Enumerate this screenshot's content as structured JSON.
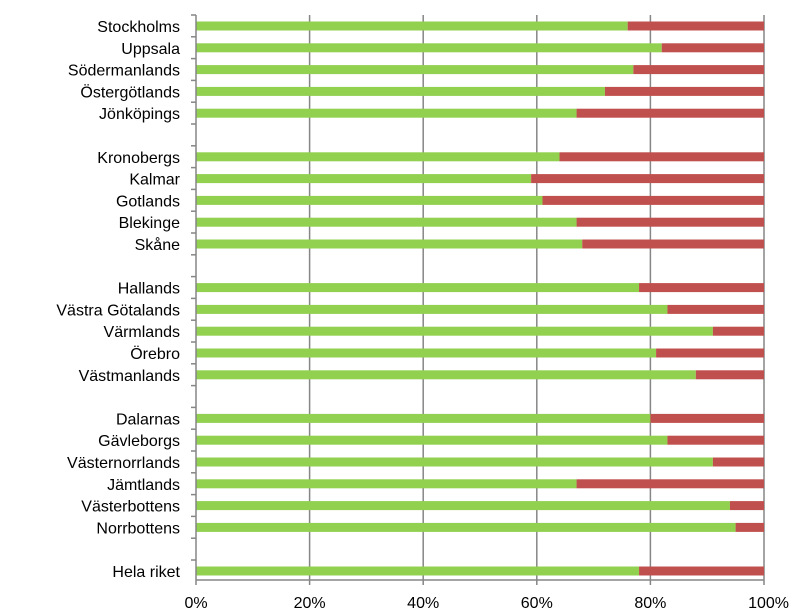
{
  "chart_data": {
    "type": "bar",
    "orientation": "horizontal",
    "stacked": true,
    "categories": [
      "Stockholms",
      "Uppsala",
      "Södermanlands",
      "Östergötlands",
      "Jönköpings",
      "",
      "Kronobergs",
      "Kalmar",
      "Gotlands",
      "Blekinge",
      "Skåne",
      "",
      "Hallands",
      "Västra Götalands",
      "Värmlands",
      "Örebro",
      "Västmanlands",
      "",
      "Dalarnas",
      "Gävleborgs",
      "Västernorrlands",
      "Jämtlands",
      "Västerbottens",
      "Norrbottens",
      "",
      "Hela riket"
    ],
    "series": [
      {
        "color": "#92d050",
        "values": [
          76,
          82,
          77,
          72,
          67,
          null,
          64,
          59,
          61,
          67,
          68,
          null,
          78,
          83,
          91,
          81,
          88,
          null,
          80,
          83,
          91,
          67,
          94,
          95,
          null,
          78
        ]
      },
      {
        "color": "#c0504d",
        "values": [
          24,
          18,
          23,
          28,
          33,
          null,
          36,
          41,
          39,
          33,
          32,
          null,
          22,
          17,
          9,
          19,
          12,
          null,
          20,
          17,
          9,
          33,
          6,
          5,
          null,
          22
        ]
      }
    ],
    "xlim": [
      0,
      100
    ],
    "xticks": [
      "0%",
      "20%",
      "40%",
      "60%",
      "80%",
      "100%"
    ],
    "grid": "vertical",
    "legend": "none"
  }
}
